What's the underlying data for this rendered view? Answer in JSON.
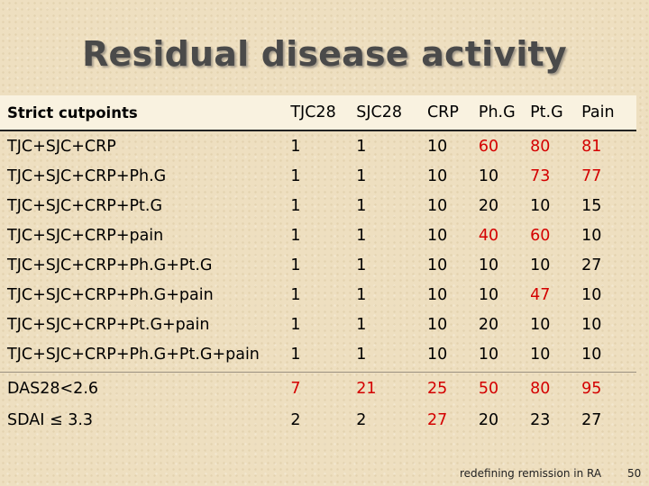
{
  "title": "Residual disease activity",
  "table": {
    "headers": [
      "Strict cutpoints",
      "TJC28",
      "SJC28",
      "CRP",
      "Ph.G",
      "Pt.G",
      "Pain"
    ],
    "rows": [
      {
        "label": "TJC+SJC+CRP",
        "values": [
          "1",
          "1",
          "10",
          "60",
          "80",
          "81"
        ],
        "highlight": [
          false,
          false,
          false,
          true,
          true,
          true
        ]
      },
      {
        "label": "TJC+SJC+CRP+Ph.G",
        "values": [
          "1",
          "1",
          "10",
          "10",
          "73",
          "77"
        ],
        "highlight": [
          false,
          false,
          false,
          false,
          true,
          true
        ]
      },
      {
        "label": "TJC+SJC+CRP+Pt.G",
        "values": [
          "1",
          "1",
          "10",
          "20",
          "10",
          "15"
        ],
        "highlight": [
          false,
          false,
          false,
          false,
          false,
          false
        ]
      },
      {
        "label": "TJC+SJC+CRP+pain",
        "values": [
          "1",
          "1",
          "10",
          "40",
          "60",
          "10"
        ],
        "highlight": [
          false,
          false,
          false,
          true,
          true,
          false
        ]
      },
      {
        "label": "TJC+SJC+CRP+Ph.G+Pt.G",
        "values": [
          "1",
          "1",
          "10",
          "10",
          "10",
          "27"
        ],
        "highlight": [
          false,
          false,
          false,
          false,
          false,
          false
        ]
      },
      {
        "label": "TJC+SJC+CRP+Ph.G+pain",
        "values": [
          "1",
          "1",
          "10",
          "10",
          "47",
          "10"
        ],
        "highlight": [
          false,
          false,
          false,
          false,
          true,
          false
        ]
      },
      {
        "label": "TJC+SJC+CRP+Pt.G+pain",
        "values": [
          "1",
          "1",
          "10",
          "20",
          "10",
          "10"
        ],
        "highlight": [
          false,
          false,
          false,
          false,
          false,
          false
        ]
      },
      {
        "label": "TJC+SJC+CRP+Ph.G+Pt.G+pain",
        "values": [
          "1",
          "1",
          "10",
          "10",
          "10",
          "10"
        ],
        "highlight": [
          false,
          false,
          false,
          false,
          false,
          false
        ]
      }
    ],
    "summary_rows": [
      {
        "label": "DAS28<2.6",
        "values": [
          "7",
          "21",
          "25",
          "50",
          "80",
          "95"
        ],
        "highlight": [
          true,
          true,
          true,
          true,
          true,
          true
        ]
      },
      {
        "label": "SDAI ≤ 3.3",
        "values": [
          "2",
          "2",
          "27",
          "20",
          "23",
          "27"
        ],
        "highlight": [
          false,
          false,
          true,
          false,
          false,
          false
        ]
      }
    ]
  },
  "footer": "redefining remission in RA",
  "page_number": "50"
}
